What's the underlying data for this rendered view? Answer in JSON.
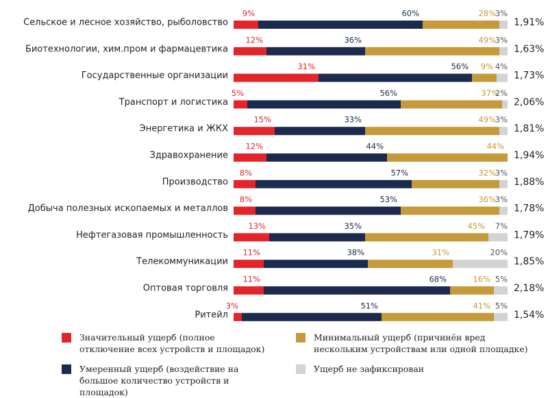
{
  "chart_data": {
    "type": "stacked-bar",
    "orientation": "horizontal",
    "categories": [
      "Сельское и лесное хозяйство, рыболовство",
      "Биотехнологии, хим.пром и фармацевтика",
      "Государственные организации",
      "Транспорт и логистика",
      "Энергетика и ЖКХ",
      "Здравохранение",
      "Производство",
      "Добыча полезных ископаемых и металлов",
      "Нефтегазовая промышленность",
      "Телекоммуникации",
      "Оптовая торговля",
      "Ритейл"
    ],
    "xlim": [
      0,
      100
    ],
    "series": [
      {
        "name": "Значительный ущерб (полное отключение всех устройств и площадок)",
        "color": "#e3242b",
        "label_color": "#e3242b",
        "values": [
          9,
          12,
          31,
          5,
          15,
          12,
          8,
          8,
          13,
          11,
          11,
          3
        ],
        "value_labels": [
          "9%",
          "12%",
          "31%",
          "5%",
          "15%",
          "12%",
          "8%",
          "8%",
          "13%",
          "11%",
          "11%",
          "3%"
        ]
      },
      {
        "name": "Умеренный ущерб (воздействие на большое количество устройств и площадок)",
        "color": "#1c2a4e",
        "label_color": "#1c2a4e",
        "values": [
          60,
          36,
          56,
          56,
          33,
          44,
          57,
          53,
          35,
          38,
          68,
          51
        ],
        "value_labels": [
          "60%",
          "36%",
          "56%",
          "56%",
          "33%",
          "44%",
          "57%",
          "53%",
          "35%",
          "38%",
          "68%",
          "51%"
        ]
      },
      {
        "name": "Минимальный ущерб (причинён вред нескольким устройствам или одной площадке)",
        "color": "#c49a3a",
        "label_color": "#c49a3a",
        "values": [
          28,
          49,
          9,
          37,
          49,
          44,
          32,
          36,
          45,
          31,
          16,
          41
        ],
        "value_labels": [
          "28%",
          "49%",
          "9%",
          "37%",
          "49%",
          "44%",
          "32%",
          "36%",
          "45%",
          "31%",
          "16%",
          "41%"
        ]
      },
      {
        "name": "Ущерб не зафиксирован",
        "color": "#d3d3d3",
        "label_color": "#555555",
        "values": [
          3,
          3,
          4,
          2,
          3,
          null,
          3,
          3,
          7,
          20,
          5,
          5
        ],
        "value_labels": [
          "3%",
          "3%",
          "4%",
          "2%",
          "3%",
          null,
          "3%",
          "3%",
          "7%",
          "20%",
          "5%",
          "5%"
        ]
      }
    ],
    "side_labels": [
      "1,91%",
      "1,63%",
      "1,73%",
      "2,06%",
      "1,81%",
      "1,94%",
      "1,88%",
      "1,78%",
      "1,79%",
      "1,85%",
      "2,18%",
      "1,54%"
    ]
  }
}
